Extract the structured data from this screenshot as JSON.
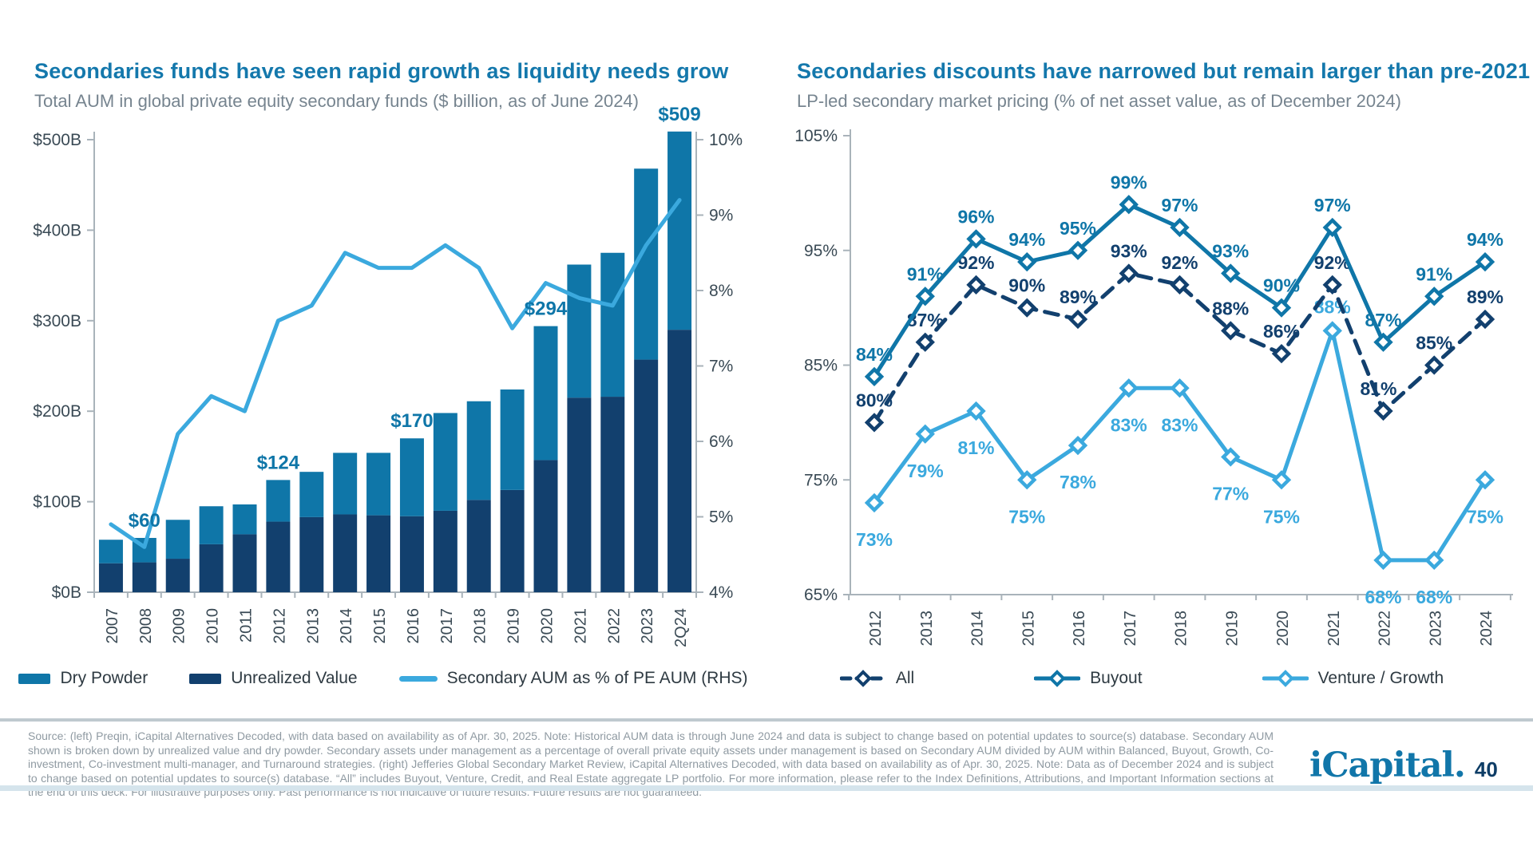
{
  "colors": {
    "title_blue": "#1478AC",
    "subtitle_gray": "#76848F",
    "bar_blue": "#0F76A8",
    "navy": "#12406E",
    "light_blue": "#3BA9DE",
    "axis_text": "#3A4A55",
    "axis_line": "#A9B3BA",
    "footer_text": "#8F9AA2"
  },
  "chart_data": [
    {
      "type": "bar",
      "combo": "stacked-bar-with-line",
      "title": "Secondaries funds have seen rapid growth as liquidity needs grow",
      "subtitle": "Total AUM in global private equity secondary funds ($ billion, as of June 2024)",
      "categories": [
        "2007",
        "2008",
        "2009",
        "2010",
        "2011",
        "2012",
        "2013",
        "2014",
        "2015",
        "2016",
        "2017",
        "2018",
        "2019",
        "2020",
        "2021",
        "2022",
        "2023",
        "2Q24"
      ],
      "series": [
        {
          "name": "Dry Powder",
          "type": "bar",
          "stack": "top",
          "color": "#0F76A8",
          "values": [
            26,
            27,
            43,
            42,
            33,
            46,
            50,
            68,
            69,
            86,
            108,
            109,
            111,
            148,
            147,
            159,
            211,
            219
          ]
        },
        {
          "name": "Unrealized Value",
          "type": "bar",
          "stack": "bottom",
          "color": "#12406E",
          "values": [
            32,
            33,
            37,
            53,
            64,
            78,
            83,
            86,
            85,
            84,
            90,
            102,
            113,
            146,
            215,
            216,
            257,
            290
          ]
        },
        {
          "name": "Secondary AUM as % of PE AUM (RHS)",
          "type": "line",
          "axis": "right",
          "color": "#3BA9DE",
          "values": [
            4.9,
            4.6,
            6.1,
            6.6,
            6.4,
            7.6,
            7.8,
            8.5,
            8.3,
            8.3,
            8.6,
            8.3,
            7.5,
            8.1,
            7.9,
            7.8,
            8.6,
            9.2
          ]
        }
      ],
      "totals": [
        58,
        60,
        80,
        95,
        97,
        124,
        133,
        154,
        154,
        170,
        198,
        211,
        224,
        294,
        362,
        375,
        468,
        509
      ],
      "total_labels": {
        "2008": "$60",
        "2012": "$124",
        "2016": "$170",
        "2020": "$294",
        "2Q24": "$509"
      },
      "left_axis": {
        "min": 0,
        "max": 500,
        "ticks": [
          "$0B",
          "$100B",
          "$200B",
          "$300B",
          "$400B",
          "$500B"
        ]
      },
      "right_axis": {
        "min": 4,
        "max": 10,
        "ticks": [
          "4%",
          "5%",
          "6%",
          "7%",
          "8%",
          "9%",
          "10%"
        ]
      },
      "grid": "off",
      "legend_position": "bottom",
      "legend": [
        "Dry Powder",
        "Unrealized Value",
        "Secondary AUM as % of PE AUM (RHS)"
      ]
    },
    {
      "type": "line",
      "title": "Secondaries discounts have narrowed but remain larger than pre-2021",
      "subtitle": "LP-led secondary market pricing (% of net asset value, as of December 2024)",
      "x": [
        "2012",
        "2013",
        "2014",
        "2015",
        "2016",
        "2017",
        "2018",
        "2019",
        "2020",
        "2021",
        "2022",
        "2023",
        "2024"
      ],
      "series": [
        {
          "name": "All",
          "color": "#12406E",
          "dash": true,
          "marker": "diamond",
          "values": [
            80,
            87,
            92,
            90,
            89,
            93,
            92,
            88,
            86,
            92,
            81,
            85,
            89
          ]
        },
        {
          "name": "Buyout",
          "color": "#0F76A8",
          "dash": false,
          "marker": "diamond",
          "values": [
            84,
            91,
            96,
            94,
            95,
            99,
            97,
            93,
            90,
            97,
            87,
            91,
            94
          ]
        },
        {
          "name": "Venture / Growth",
          "color": "#3BA9DE",
          "dash": false,
          "marker": "diamond",
          "values": [
            73,
            79,
            81,
            75,
            78,
            83,
            83,
            77,
            75,
            88,
            68,
            68,
            75
          ]
        }
      ],
      "y_axis": {
        "min": 65,
        "max": 105,
        "ticks": [
          "65%",
          "75%",
          "85%",
          "95%",
          "105%"
        ]
      },
      "grid": "off",
      "legend_position": "bottom",
      "legend": [
        "All",
        "Buyout",
        "Venture / Growth"
      ]
    }
  ],
  "footer": {
    "source": "Source: (left) Preqin, iCapital Alternatives Decoded, with data based on availability as of Apr. 30, 2025. Note: Historical AUM data is through June 2024 and data is subject to change based on potential updates to source(s) database. Secondary AUM shown is broken down by unrealized value and dry powder. Secondary assets under management as a percentage of overall private equity assets under management is based on Secondary AUM divided by AUM within Balanced, Buyout, Growth, Co-investment, Co-investment multi-manager, and Turnaround strategies. (right) Jefferies Global Secondary Market Review, iCapital Alternatives Decoded, with data based on availability as of Apr. 30, 2025. Note: Data as of December 2024 and is subject to change based on potential updates to source(s) database. “All” includes Buyout, Venture, Credit, and Real Estate aggregate LP portfolio. For more information, please refer to the Index Definitions, Attributions, and Important Information sections at the end of this deck. For illustrative purposes only. Past performance is not indicative of future results. Future results are not guaranteed.",
    "logo_text": "iCapital.",
    "page_number": "40"
  }
}
